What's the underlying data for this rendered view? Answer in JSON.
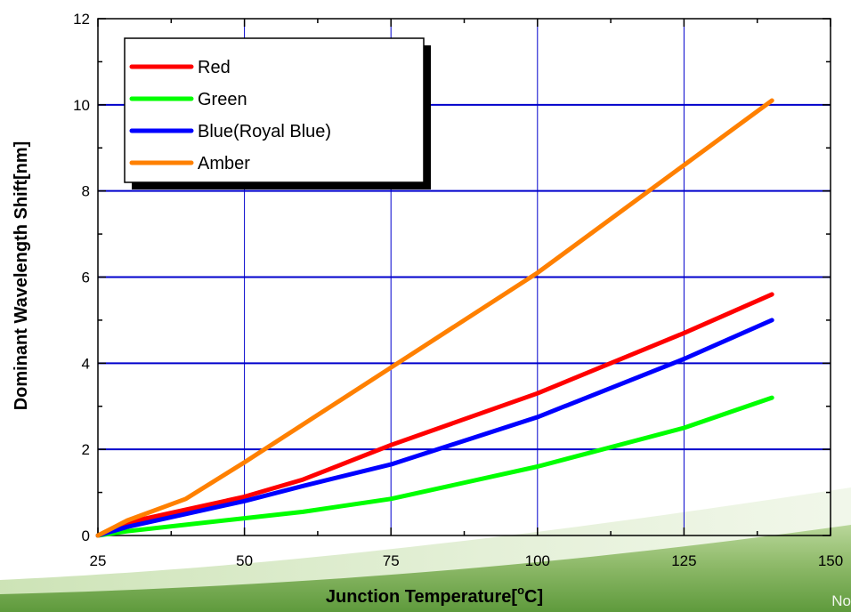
{
  "corner_text": "No",
  "chart_data": {
    "type": "line",
    "xlabel": "Junction Temperature[°C]",
    "xlabel_main": "Junction Temperature[",
    "xlabel_sup": "o",
    "xlabel_end": "C]",
    "ylabel": "Dominant Wavelength Shift[nm]",
    "xlim": [
      25,
      150
    ],
    "ylim": [
      0,
      12
    ],
    "xticks": [
      25,
      50,
      75,
      100,
      125,
      150
    ],
    "yticks": [
      0,
      2,
      4,
      6,
      8,
      10,
      12
    ],
    "grid": true,
    "legend_position": "top-left",
    "series": [
      {
        "name": "Red",
        "color": "#ff0000",
        "x": [
          25,
          30,
          40,
          50,
          60,
          75,
          100,
          125,
          140
        ],
        "y": [
          0,
          0.3,
          0.6,
          0.9,
          1.3,
          2.1,
          3.3,
          4.7,
          5.6
        ]
      },
      {
        "name": "Green",
        "color": "#00ff00",
        "x": [
          25,
          30,
          40,
          50,
          60,
          75,
          100,
          125,
          140
        ],
        "y": [
          0,
          0.1,
          0.25,
          0.4,
          0.55,
          0.85,
          1.6,
          2.5,
          3.2
        ]
      },
      {
        "name": "Blue(Royal Blue)",
        "color": "#0000ff",
        "x": [
          25,
          30,
          40,
          50,
          60,
          75,
          100,
          125,
          140
        ],
        "y": [
          0,
          0.2,
          0.5,
          0.8,
          1.15,
          1.65,
          2.75,
          4.1,
          5.0
        ]
      },
      {
        "name": "Amber",
        "color": "#ff8000",
        "x": [
          25,
          30,
          40,
          50,
          75,
          100,
          125,
          140
        ],
        "y": [
          0,
          0.35,
          0.85,
          1.7,
          3.9,
          6.1,
          8.6,
          10.1
        ]
      }
    ]
  }
}
